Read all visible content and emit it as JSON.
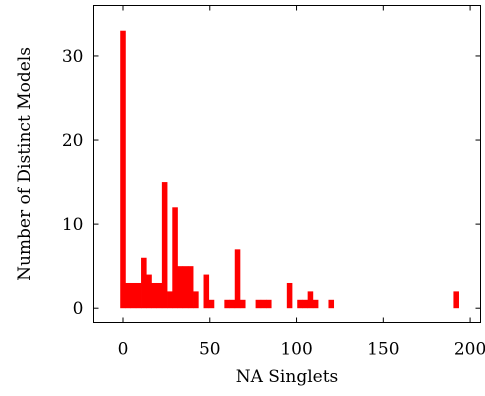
{
  "chart_data": {
    "type": "bar",
    "title": "",
    "xlabel": "NA Singlets",
    "ylabel": "Number of Distinct Models",
    "xlim": [
      -17,
      206
    ],
    "ylim": [
      -1.7,
      36
    ],
    "bar_width": 3.2,
    "grid": false,
    "legend": "none",
    "bar_color": "#ff0000",
    "x_ticks": [
      {
        "value": 0,
        "label": "0"
      },
      {
        "value": 50,
        "label": "50"
      },
      {
        "value": 100,
        "label": "100"
      },
      {
        "value": 150,
        "label": "150"
      },
      {
        "value": 200,
        "label": "200"
      }
    ],
    "y_ticks": [
      {
        "value": 0,
        "label": "0"
      },
      {
        "value": 10,
        "label": "10"
      },
      {
        "value": 20,
        "label": "20"
      },
      {
        "value": 30,
        "label": "30"
      }
    ],
    "x": [
      0,
      3,
      6,
      9,
      12,
      15,
      18,
      21,
      24,
      27,
      30,
      33,
      36,
      39,
      42,
      48,
      51,
      60,
      63,
      66,
      69,
      78,
      81,
      84,
      96,
      102,
      105,
      108,
      111,
      120,
      192
    ],
    "values": [
      33,
      3,
      3,
      3,
      6,
      4,
      3,
      3,
      15,
      2,
      12,
      5,
      5,
      5,
      2,
      4,
      1,
      1,
      1,
      7,
      1,
      1,
      1,
      1,
      3,
      1,
      1,
      2,
      1,
      1,
      2
    ]
  }
}
